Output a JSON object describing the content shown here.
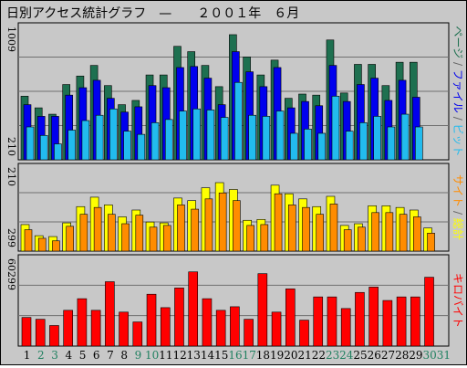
{
  "title": "日別アクセス統計グラフ　—　　２００１年　６月",
  "colors": {
    "page": "#1e7050",
    "file": "#0000ee",
    "visit": "#22bbee",
    "hit_bg": "#ffff00",
    "hit_fg": "#ff8c00",
    "kb": "#ff0000",
    "title": "#1a33cc",
    "panel_bg": "#c8c8c8",
    "frame_bg": "#c8c8c8"
  },
  "chart_data": [
    {
      "type": "bar",
      "panel": "visits",
      "right_label_parts": [
        {
          "text": "ページ",
          "color": "#1e7050"
        },
        {
          "text": " / ",
          "color": "#606060"
        },
        {
          "text": "ファイル",
          "color": "#0000ee"
        },
        {
          "text": " / ",
          "color": "#606060"
        },
        {
          "text": "ビット",
          "color": "#22bbee"
        }
      ],
      "y_max_label": "1009",
      "y_min_label": "210",
      "categories": [
        "1",
        "2",
        "3",
        "4",
        "5",
        "6",
        "7",
        "8",
        "9",
        "10",
        "11",
        "12",
        "13",
        "14",
        "15",
        "16",
        "17",
        "18",
        "19",
        "20",
        "21",
        "22",
        "23",
        "24",
        "25",
        "26",
        "27",
        "28",
        "29",
        "30",
        "31"
      ],
      "series": [
        {
          "key": "pages",
          "values": [
            60,
            49,
            43,
            71,
            79,
            89,
            70,
            52,
            56,
            80,
            80,
            107,
            102,
            89,
            69,
            118,
            97,
            80,
            94,
            58,
            62,
            61,
            113,
            63,
            90,
            90,
            70,
            92,
            92,
            0,
            0
          ]
        },
        {
          "key": "files",
          "values": [
            52,
            41,
            41,
            61,
            68,
            75,
            58,
            45,
            50,
            70,
            68,
            87,
            88,
            77,
            52,
            102,
            83,
            69,
            87,
            49,
            55,
            51,
            89,
            55,
            71,
            77,
            56,
            75,
            59,
            0,
            0
          ]
        },
        {
          "key": "visits",
          "values": [
            31,
            23,
            15,
            28,
            37,
            42,
            48,
            27,
            24,
            35,
            38,
            46,
            48,
            47,
            40,
            73,
            42,
            41,
            46,
            25,
            29,
            25,
            60,
            27,
            35,
            41,
            31,
            43,
            31,
            0,
            0
          ]
        }
      ]
    },
    {
      "type": "bar",
      "panel": "hits",
      "right_label_parts": [
        {
          "text": "サイト",
          "color": "#ff8c00"
        },
        {
          "text": " / ",
          "color": "#606060"
        },
        {
          "text": "総計",
          "color": "#ffff00"
        }
      ],
      "y_max_label": "210",
      "y_min_label": "299",
      "series": [
        {
          "key": "hits_total",
          "values": [
            31,
            18,
            17,
            33,
            52,
            63,
            54,
            40,
            48,
            34,
            33,
            62,
            59,
            74,
            80,
            72,
            36,
            37,
            77,
            67,
            61,
            52,
            64,
            30,
            32,
            53,
            53,
            51,
            48,
            27,
            0
          ]
        },
        {
          "key": "hits_sites",
          "values": [
            25,
            15,
            12,
            29,
            43,
            51,
            43,
            32,
            42,
            28,
            30,
            54,
            49,
            61,
            68,
            59,
            30,
            31,
            67,
            54,
            51,
            43,
            55,
            25,
            28,
            45,
            45,
            43,
            40,
            21,
            0
          ]
        }
      ]
    },
    {
      "type": "bar",
      "panel": "kbytes",
      "right_label_parts": [
        {
          "text": "キロバイト",
          "color": "#ff0000"
        }
      ],
      "y_max_label": "60299",
      "series": [
        {
          "key": "kbytes",
          "values": [
            32,
            30,
            23,
            40,
            53,
            40,
            72,
            38,
            27,
            58,
            43,
            65,
            83,
            53,
            40,
            44,
            30,
            81,
            38,
            64,
            29,
            55,
            55,
            42,
            60,
            66,
            51,
            55,
            55,
            77,
            0
          ]
        }
      ]
    }
  ],
  "x_labels": [
    {
      "text": "1",
      "color": "#000000"
    },
    {
      "text": "2",
      "color": "#208060"
    },
    {
      "text": "3",
      "color": "#208060"
    },
    {
      "text": "4",
      "color": "#000000"
    },
    {
      "text": "5",
      "color": "#000000"
    },
    {
      "text": "6",
      "color": "#000000"
    },
    {
      "text": "7",
      "color": "#000000"
    },
    {
      "text": "8",
      "color": "#000000"
    },
    {
      "text": "9",
      "color": "#208060"
    },
    {
      "text": "10",
      "color": "#208060"
    },
    {
      "text": "11",
      "color": "#000000"
    },
    {
      "text": "12",
      "color": "#000000"
    },
    {
      "text": "13",
      "color": "#000000"
    },
    {
      "text": "14",
      "color": "#000000"
    },
    {
      "text": "15",
      "color": "#000000"
    },
    {
      "text": "16",
      "color": "#208060"
    },
    {
      "text": "17",
      "color": "#208060"
    },
    {
      "text": "18",
      "color": "#000000"
    },
    {
      "text": "19",
      "color": "#000000"
    },
    {
      "text": "20",
      "color": "#000000"
    },
    {
      "text": "21",
      "color": "#000000"
    },
    {
      "text": "22",
      "color": "#000000"
    },
    {
      "text": "23",
      "color": "#208060"
    },
    {
      "text": "24",
      "color": "#208060"
    },
    {
      "text": "25",
      "color": "#000000"
    },
    {
      "text": "26",
      "color": "#000000"
    },
    {
      "text": "27",
      "color": "#000000"
    },
    {
      "text": "28",
      "color": "#000000"
    },
    {
      "text": "29",
      "color": "#000000"
    },
    {
      "text": "30",
      "color": "#208060"
    },
    {
      "text": "31",
      "color": "#208060"
    }
  ]
}
